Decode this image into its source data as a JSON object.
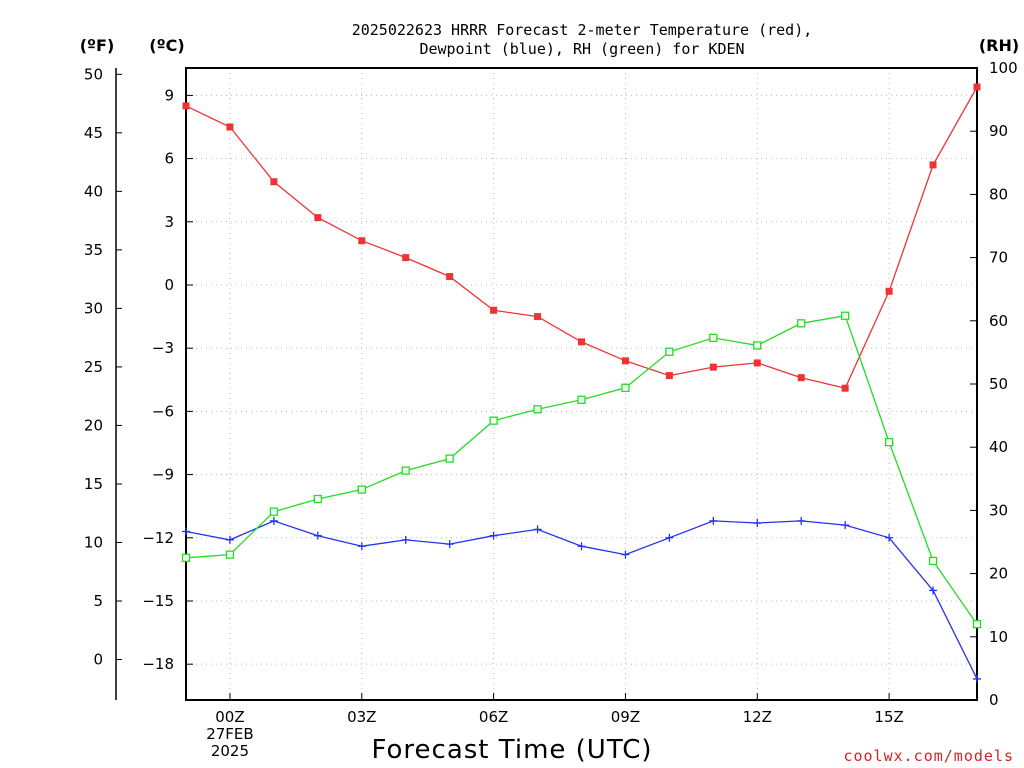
{
  "chart_data": {
    "type": "line",
    "title_lines": [
      "2025022623 HRRR Forecast 2-meter Temperature (red),",
      "Dewpoint (blue), RH (green) for KDEN"
    ],
    "xlabel": "Forecast Time (UTC)",
    "credit": "coolwx.com/models",
    "unit_labels": {
      "fahrenheit": "(ºF)",
      "celsius": "(ºC)",
      "rh": "(RH)"
    },
    "x": [
      -1,
      0,
      1,
      2,
      3,
      4,
      5,
      6,
      7,
      8,
      9,
      10,
      11,
      12,
      13,
      14,
      15,
      16,
      17
    ],
    "xlim": [
      -1,
      17
    ],
    "x_ticks": [
      {
        "x": 0,
        "lines": [
          "00Z",
          "27FEB",
          "2025"
        ]
      },
      {
        "x": 3,
        "lines": [
          "03Z"
        ]
      },
      {
        "x": 6,
        "lines": [
          "06Z"
        ]
      },
      {
        "x": 9,
        "lines": [
          "09Z"
        ]
      },
      {
        "x": 12,
        "lines": [
          "12Z"
        ]
      },
      {
        "x": 15,
        "lines": [
          "15Z"
        ]
      }
    ],
    "celsius_axis": {
      "lim": [
        -19.7,
        10.3
      ],
      "ticks": [
        9,
        6,
        3,
        0,
        -3,
        -6,
        -9,
        -12,
        -15,
        -18
      ],
      "tick_labels": [
        "9",
        "6",
        "3",
        "0",
        "−3",
        "−6",
        "−9",
        "−12",
        "−15",
        "−18"
      ]
    },
    "fahrenheit_axis": {
      "ticks": [
        50,
        45,
        40,
        35,
        30,
        25,
        20,
        15,
        10,
        5,
        0
      ],
      "tick_labels": [
        "50",
        "45",
        "40",
        "35",
        "30",
        "25",
        "20",
        "15",
        "10",
        "5",
        "0"
      ]
    },
    "rh_axis": {
      "lim": [
        0,
        100
      ],
      "ticks": [
        100,
        90,
        80,
        70,
        60,
        50,
        40,
        30,
        20,
        10,
        0
      ],
      "tick_labels": [
        "100",
        "90",
        "80",
        "70",
        "60",
        "50",
        "40",
        "30",
        "20",
        "10",
        "0"
      ]
    },
    "grid": true,
    "series": [
      {
        "axis": "celsius",
        "color": "#ee3333",
        "marker": "filled-square",
        "values": [
          8.5,
          7.5,
          4.9,
          3.2,
          2.1,
          1.3,
          0.4,
          -1.2,
          -1.5,
          -2.7,
          -3.6,
          -4.3,
          -3.9,
          -3.7,
          -4.4,
          -4.9,
          -0.3,
          5.7,
          9.4
        ]
      },
      {
        "axis": "celsius",
        "color": "#2233ee",
        "marker": "plus",
        "values": [
          -11.7,
          -12.1,
          -11.2,
          -11.9,
          -12.4,
          -12.1,
          -12.3,
          -11.9,
          -11.6,
          -12.4,
          -12.8,
          -12.0,
          -11.2,
          -11.3,
          -11.2,
          -11.4,
          -12.0,
          -14.5,
          -18.7
        ]
      },
      {
        "axis": "rh",
        "color": "#22dd22",
        "marker": "open-square",
        "values": [
          22.5,
          23.0,
          29.8,
          31.8,
          33.3,
          36.3,
          38.2,
          44.2,
          46.0,
          47.5,
          49.4,
          55.1,
          57.3,
          56.1,
          59.6,
          60.8,
          40.8,
          22.0,
          12.0
        ]
      }
    ]
  }
}
